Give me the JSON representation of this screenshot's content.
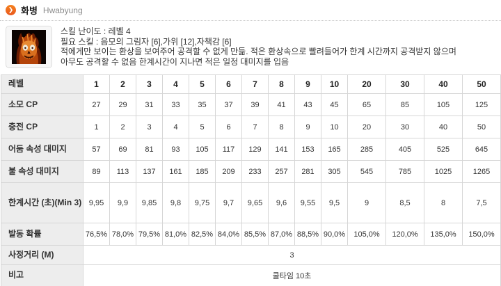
{
  "header": {
    "title_ko": "화병",
    "title_en": "Hwabyung",
    "bullet_glyph": "❯"
  },
  "skill": {
    "difficulty": "스킬 난이도 : 레벨 4",
    "required": "필요 스킬 : 음모의 그림자 [6],가위 [12],자책감 [6]",
    "description_line1": "적에게만 보이는 환상을 보여주어 공격할 수 없게 만듦. 적은 환상속으로 빨려들어가 한계 시간까지 공격받지 않으며",
    "description_line2": "아무도 공격할 수 없음 한계시간이 지나면 적은 일정 대미지를 입음",
    "icon_name": "flaming-skull-icon"
  },
  "table": {
    "header_label": "레벨",
    "levels": [
      "1",
      "2",
      "3",
      "4",
      "5",
      "6",
      "7",
      "8",
      "9",
      "10",
      "20",
      "30",
      "40",
      "50"
    ],
    "rows": [
      {
        "label": "소모 CP",
        "values": [
          "27",
          "29",
          "31",
          "33",
          "35",
          "37",
          "39",
          "41",
          "43",
          "45",
          "65",
          "85",
          "105",
          "125"
        ]
      },
      {
        "label": "충전 CP",
        "values": [
          "1",
          "2",
          "3",
          "4",
          "5",
          "6",
          "7",
          "8",
          "9",
          "10",
          "20",
          "30",
          "40",
          "50"
        ]
      },
      {
        "label": "어둠 속성 대미지",
        "values": [
          "57",
          "69",
          "81",
          "93",
          "105",
          "117",
          "129",
          "141",
          "153",
          "165",
          "285",
          "405",
          "525",
          "645"
        ]
      },
      {
        "label": "불 속성 대미지",
        "values": [
          "89",
          "113",
          "137",
          "161",
          "185",
          "209",
          "233",
          "257",
          "281",
          "305",
          "545",
          "785",
          "1025",
          "1265"
        ]
      },
      {
        "label": "한계시간 (초)(Min 3)",
        "values": [
          "9,95",
          "9,9",
          "9,85",
          "9,8",
          "9,75",
          "9,7",
          "9,65",
          "9,6",
          "9,55",
          "9,5",
          "9",
          "8,5",
          "8",
          "7,5"
        ]
      },
      {
        "label": "발동 확률",
        "values": [
          "76,5%",
          "78,0%",
          "79,5%",
          "81,0%",
          "82,5%",
          "84,0%",
          "85,5%",
          "87,0%",
          "88,5%",
          "90,0%",
          "105,0%",
          "120,0%",
          "135,0%",
          "150,0%"
        ]
      }
    ],
    "merged_rows": [
      {
        "label": "사정거리 (M)",
        "value": "3"
      },
      {
        "label": "비고",
        "value": "쿨타임 10초"
      }
    ]
  },
  "colors": {
    "accent_orange": "#ee6a1d",
    "label_bg": "#ededed",
    "border": "#d6d6d6"
  }
}
